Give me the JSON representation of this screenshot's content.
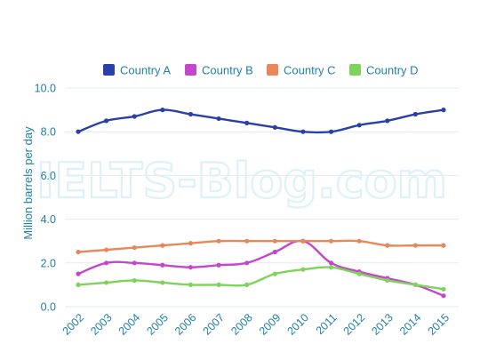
{
  "chart_data": {
    "type": "line",
    "title": "",
    "xlabel": "",
    "ylabel": "Million barrels per day",
    "x": [
      "2002",
      "2003",
      "2004",
      "2005",
      "2006",
      "2007",
      "2008",
      "2009",
      "2010",
      "2011",
      "2012",
      "2013",
      "2014",
      "2015"
    ],
    "ylim": [
      0,
      10
    ],
    "yticks": [
      "0.0",
      "2.0",
      "4.0",
      "6.0",
      "8.0",
      "10.0"
    ],
    "ytick_values": [
      0,
      2,
      4,
      6,
      8,
      10
    ],
    "grid": true,
    "legend_position": "top-center",
    "series": [
      {
        "name": "Country A",
        "color": "#2a3fa8",
        "values": [
          8.0,
          8.5,
          8.7,
          9.0,
          8.8,
          8.6,
          8.4,
          8.2,
          8.0,
          8.0,
          8.3,
          8.5,
          8.8,
          9.0
        ]
      },
      {
        "name": "Country B",
        "color": "#c447c9",
        "values": [
          1.5,
          2.0,
          2.0,
          1.9,
          1.8,
          1.9,
          2.0,
          2.5,
          3.0,
          2.0,
          1.6,
          1.3,
          1.0,
          0.5
        ]
      },
      {
        "name": "Country C",
        "color": "#e8875b",
        "values": [
          2.5,
          2.6,
          2.7,
          2.8,
          2.9,
          3.0,
          3.0,
          3.0,
          3.0,
          3.0,
          3.0,
          2.8,
          2.8,
          2.8
        ]
      },
      {
        "name": "Country D",
        "color": "#7ed35a",
        "values": [
          1.0,
          1.1,
          1.2,
          1.1,
          1.0,
          1.0,
          1.0,
          1.5,
          1.7,
          1.8,
          1.5,
          1.2,
          1.0,
          0.8
        ]
      }
    ]
  },
  "watermark": "IELTS-Blog.com",
  "colors": {
    "axis_text": "#1f7fa6",
    "grid": "#e2ecef",
    "legend_text": "#1f7fa6",
    "watermark": "#dff1f8"
  }
}
